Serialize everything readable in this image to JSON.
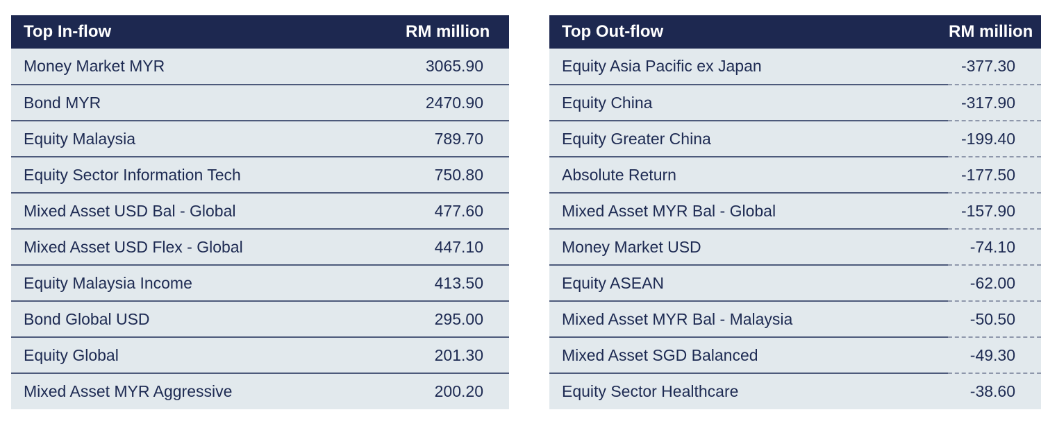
{
  "colors": {
    "header_bg": "#1d2850",
    "header_text": "#ffffff",
    "row_bg": "#e2e9ed",
    "row_text": "#1d2a52",
    "divider_solid": "#4d5a7b",
    "divider_dashed": "#8e97ab",
    "page_bg": "#ffffff"
  },
  "tables": [
    {
      "id": "inflow",
      "title": "Top In-flow",
      "value_header": "RM million",
      "rows": [
        {
          "name": "Money Market MYR",
          "value": "3065.90"
        },
        {
          "name": "Bond MYR",
          "value": "2470.90"
        },
        {
          "name": "Equity Malaysia",
          "value": "789.70"
        },
        {
          "name": "Equity Sector Information Tech",
          "value": "750.80"
        },
        {
          "name": "Mixed Asset USD Bal - Global",
          "value": "477.60"
        },
        {
          "name": "Mixed Asset USD Flex - Global",
          "value": "447.10"
        },
        {
          "name": "Equity Malaysia Income",
          "value": "413.50"
        },
        {
          "name": "Bond Global USD",
          "value": "295.00"
        },
        {
          "name": "Equity Global",
          "value": "201.30"
        },
        {
          "name": "Mixed Asset MYR Aggressive",
          "value": "200.20"
        }
      ]
    },
    {
      "id": "outflow",
      "title": "Top Out-flow",
      "value_header": "RM million",
      "rows": [
        {
          "name": "Equity Asia Pacific ex Japan",
          "value": "-377.30"
        },
        {
          "name": "Equity China",
          "value": "-317.90"
        },
        {
          "name": "Equity Greater China",
          "value": "-199.40"
        },
        {
          "name": "Absolute Return",
          "value": "-177.50"
        },
        {
          "name": "Mixed Asset MYR Bal - Global",
          "value": "-157.90"
        },
        {
          "name": "Money Market USD",
          "value": "-74.10"
        },
        {
          "name": "Equity ASEAN",
          "value": "-62.00"
        },
        {
          "name": "Mixed Asset MYR Bal - Malaysia",
          "value": "-50.50"
        },
        {
          "name": "Mixed Asset SGD Balanced",
          "value": "-49.30"
        },
        {
          "name": "Equity Sector Healthcare",
          "value": "-38.60"
        }
      ]
    }
  ]
}
